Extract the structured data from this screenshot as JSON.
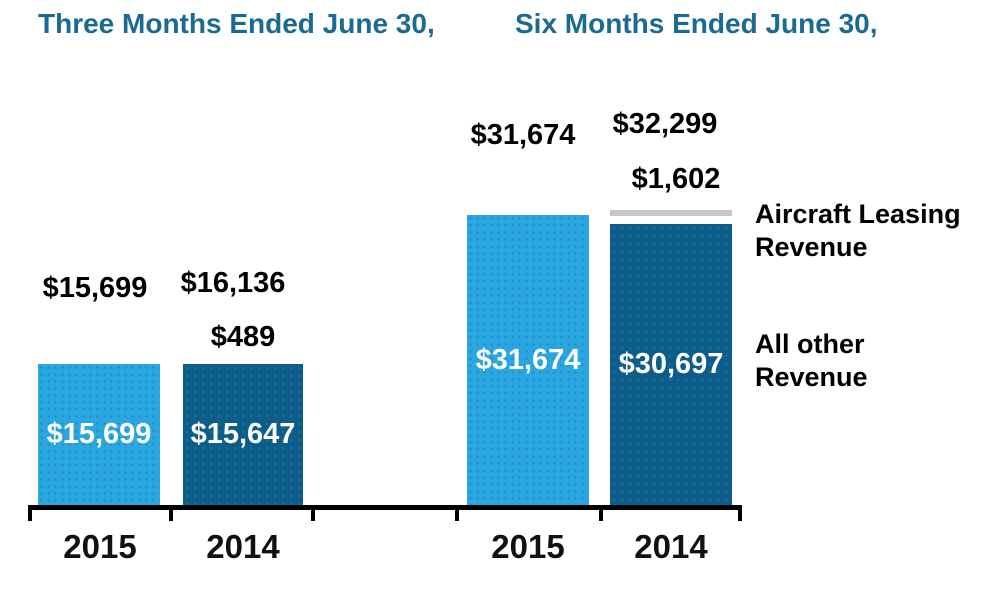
{
  "chart_data": {
    "type": "bar",
    "stacked": true,
    "groups": [
      {
        "title": "Three Months Ended June 30,",
        "categories": [
          "2015",
          "2014"
        ],
        "totals": [
          15699,
          16136
        ],
        "total_labels": [
          "$15,699",
          "$16,136"
        ],
        "series": [
          {
            "name": "Aircraft Leasing Revenue",
            "values": [
              0,
              489
            ],
            "labels": [
              "",
              "$489"
            ]
          },
          {
            "name": "All other Revenue",
            "values": [
              15699,
              15647
            ],
            "labels": [
              "$15,699",
              "$15,647"
            ]
          }
        ]
      },
      {
        "title": "Six Months Ended June 30,",
        "categories": [
          "2015",
          "2014"
        ],
        "totals": [
          31674,
          32299
        ],
        "total_labels": [
          "$31,674",
          "$32,299"
        ],
        "series": [
          {
            "name": "Aircraft Leasing Revenue",
            "values": [
              0,
              1602
            ],
            "labels": [
              "",
              "$1,602"
            ]
          },
          {
            "name": "All other Revenue",
            "values": [
              31674,
              30697
            ],
            "labels": [
              "$31,674",
              "$30,697"
            ]
          }
        ]
      }
    ],
    "legend": [
      {
        "label": "Aircraft Leasing Revenue",
        "swatch_color": "#c6c6c6"
      },
      {
        "label": "All other Revenue",
        "swatch_color": "#0d5d8c"
      }
    ],
    "colors": {
      "bar_2015": "#2aa7e0",
      "bar_2014": "#0d5d8c",
      "aircraft_leasing_segment": "#c6c6c6",
      "group_title": "#1a6a94",
      "value_label": "#000000",
      "in_bar_label": "#ffffff",
      "axis": "#000000"
    },
    "layout_hints": {
      "legend_position": "right",
      "grid": false,
      "value_labels_above_bars": true,
      "value_labels_inside_bars": true
    }
  }
}
